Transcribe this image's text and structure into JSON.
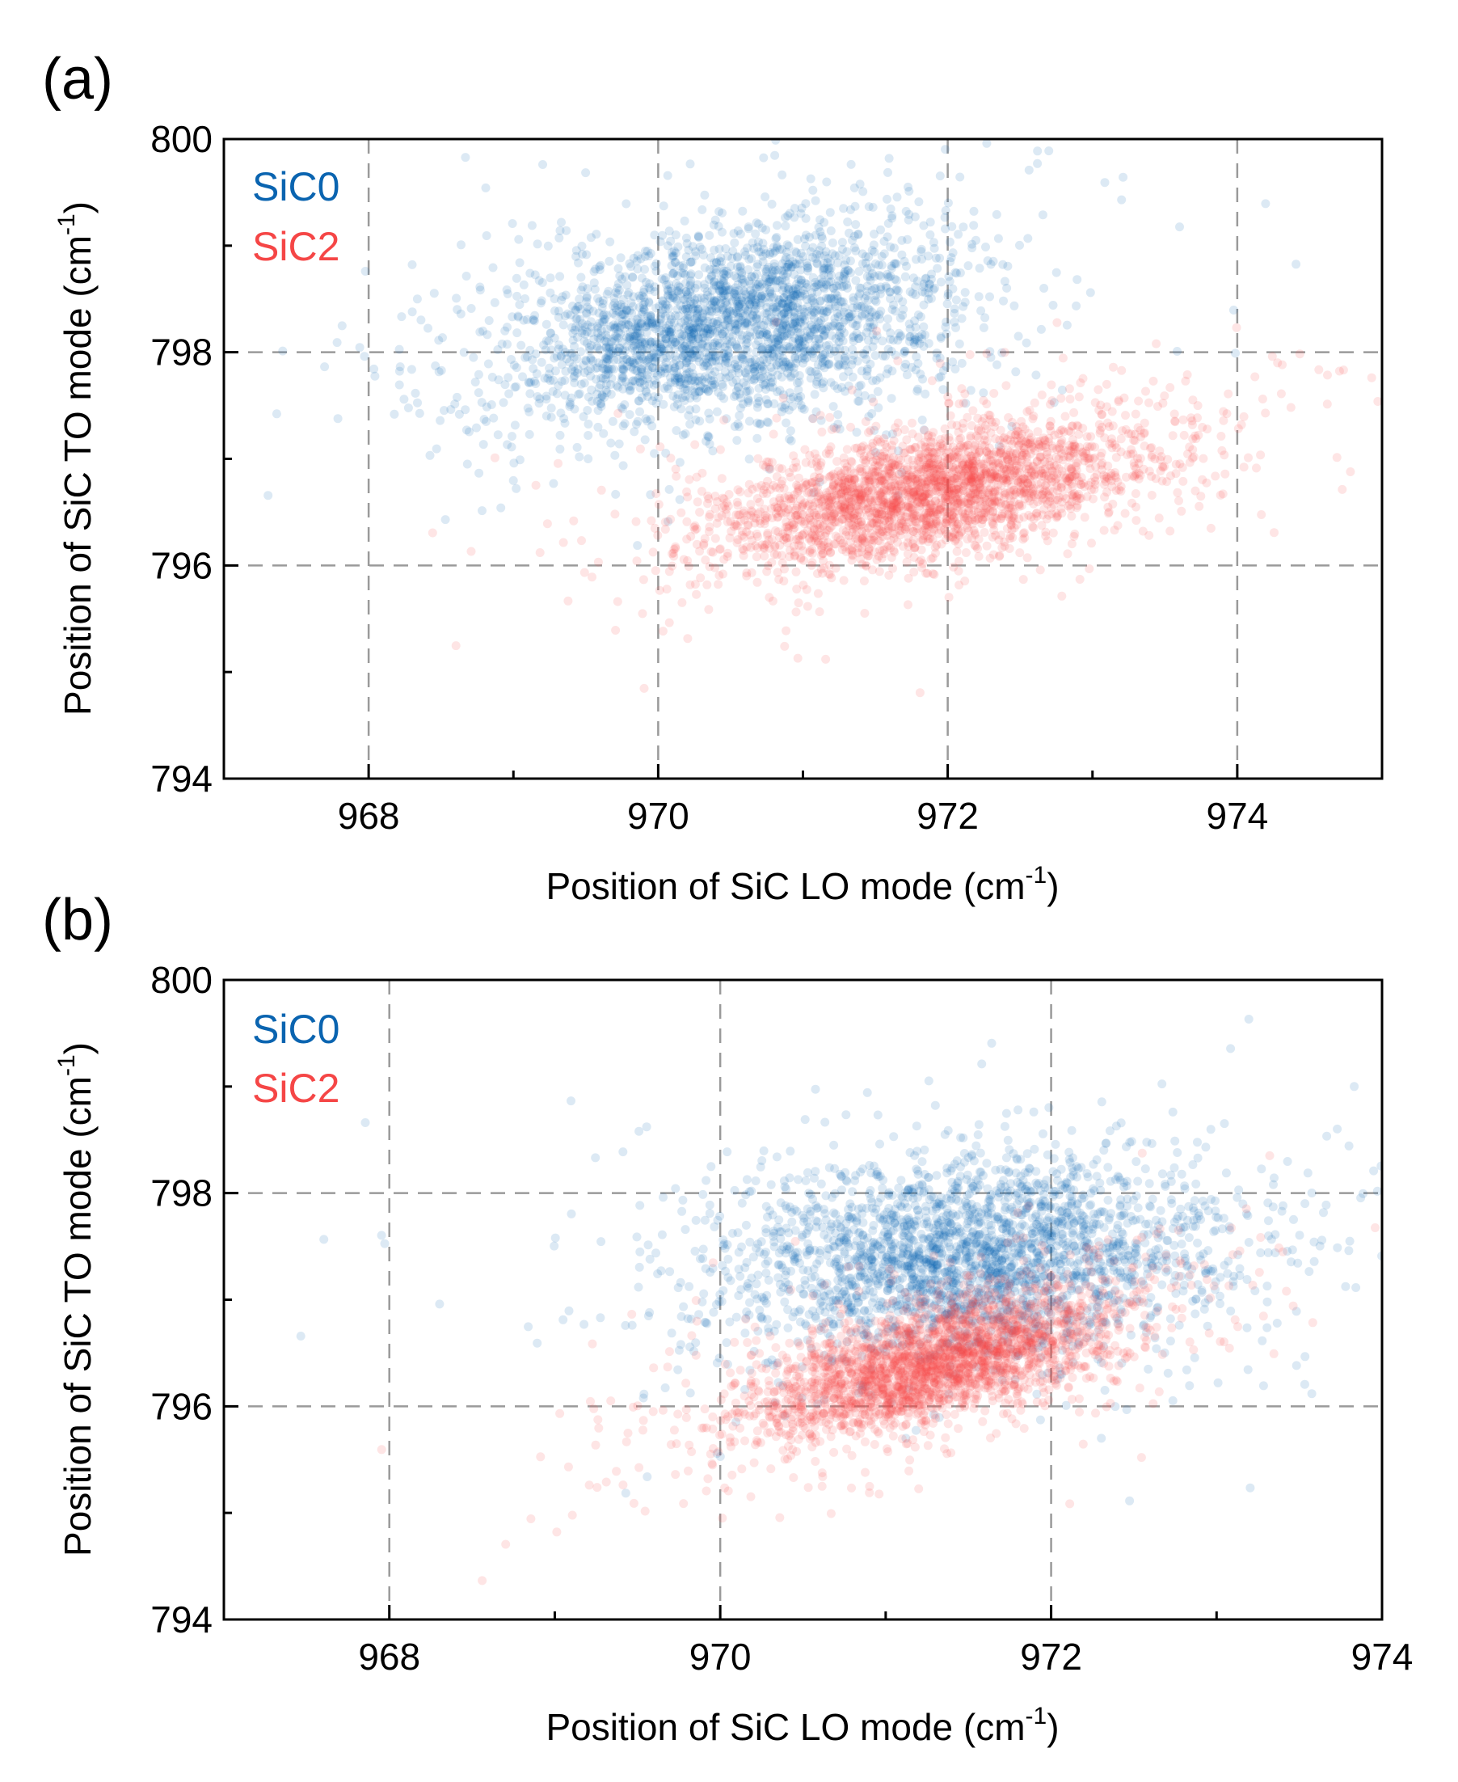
{
  "chart_data": [
    {
      "panel_label": "(a)",
      "type": "scatter",
      "xlabel": "Position of SiC LO mode (cm",
      "xlabel_sup": "-1",
      "xlabel_end": ")",
      "ylabel": "Position of SiC TO mode (cm",
      "ylabel_sup": "-1",
      "ylabel_end": ")",
      "xlim": [
        967,
        975
      ],
      "ylim": [
        794,
        800
      ],
      "xticks": [
        968,
        970,
        972,
        974
      ],
      "yticks": [
        794,
        796,
        798,
        800
      ],
      "x_tick_labels": [
        "968",
        "970",
        "972",
        "974"
      ],
      "y_tick_labels": [
        "794",
        "796",
        "798",
        "800"
      ],
      "grid": true,
      "legend": {
        "position": "top-left"
      },
      "series": [
        {
          "name": "SiC0",
          "color": "#0a64b0",
          "center": [
            970.5,
            798.25
          ],
          "spread": [
            0.75,
            0.45
          ],
          "correlation": 0.25,
          "points_shown": 9000
        },
        {
          "name": "SiC2",
          "color": "#f54646",
          "center": [
            971.9,
            796.7
          ],
          "spread": [
            0.75,
            0.35
          ],
          "correlation": 0.55,
          "points_shown": 9000
        }
      ]
    },
    {
      "panel_label": "(b)",
      "type": "scatter",
      "xlabel": "Position of SiC LO mode (cm",
      "xlabel_sup": "-1",
      "xlabel_end": ")",
      "ylabel": "Position of SiC TO mode (cm",
      "ylabel_sup": "-1",
      "ylabel_end": ")",
      "xlim": [
        967,
        974
      ],
      "ylim": [
        794,
        800
      ],
      "xticks": [
        968,
        970,
        972,
        974
      ],
      "yticks": [
        794,
        796,
        798,
        800
      ],
      "x_tick_labels": [
        "968",
        "970",
        "972",
        "974"
      ],
      "y_tick_labels": [
        "794",
        "796",
        "798",
        "800"
      ],
      "grid": true,
      "legend": {
        "position": "top-left"
      },
      "series": [
        {
          "name": "SiC0",
          "color": "#0a64b0",
          "center": [
            971.5,
            797.4
          ],
          "spread": [
            0.75,
            0.45
          ],
          "correlation": 0.15,
          "points_shown": 9000
        },
        {
          "name": "SiC2",
          "color": "#f54646",
          "center": [
            971.3,
            796.4
          ],
          "spread": [
            0.55,
            0.35
          ],
          "correlation": 0.6,
          "points_shown": 9000
        }
      ]
    }
  ]
}
